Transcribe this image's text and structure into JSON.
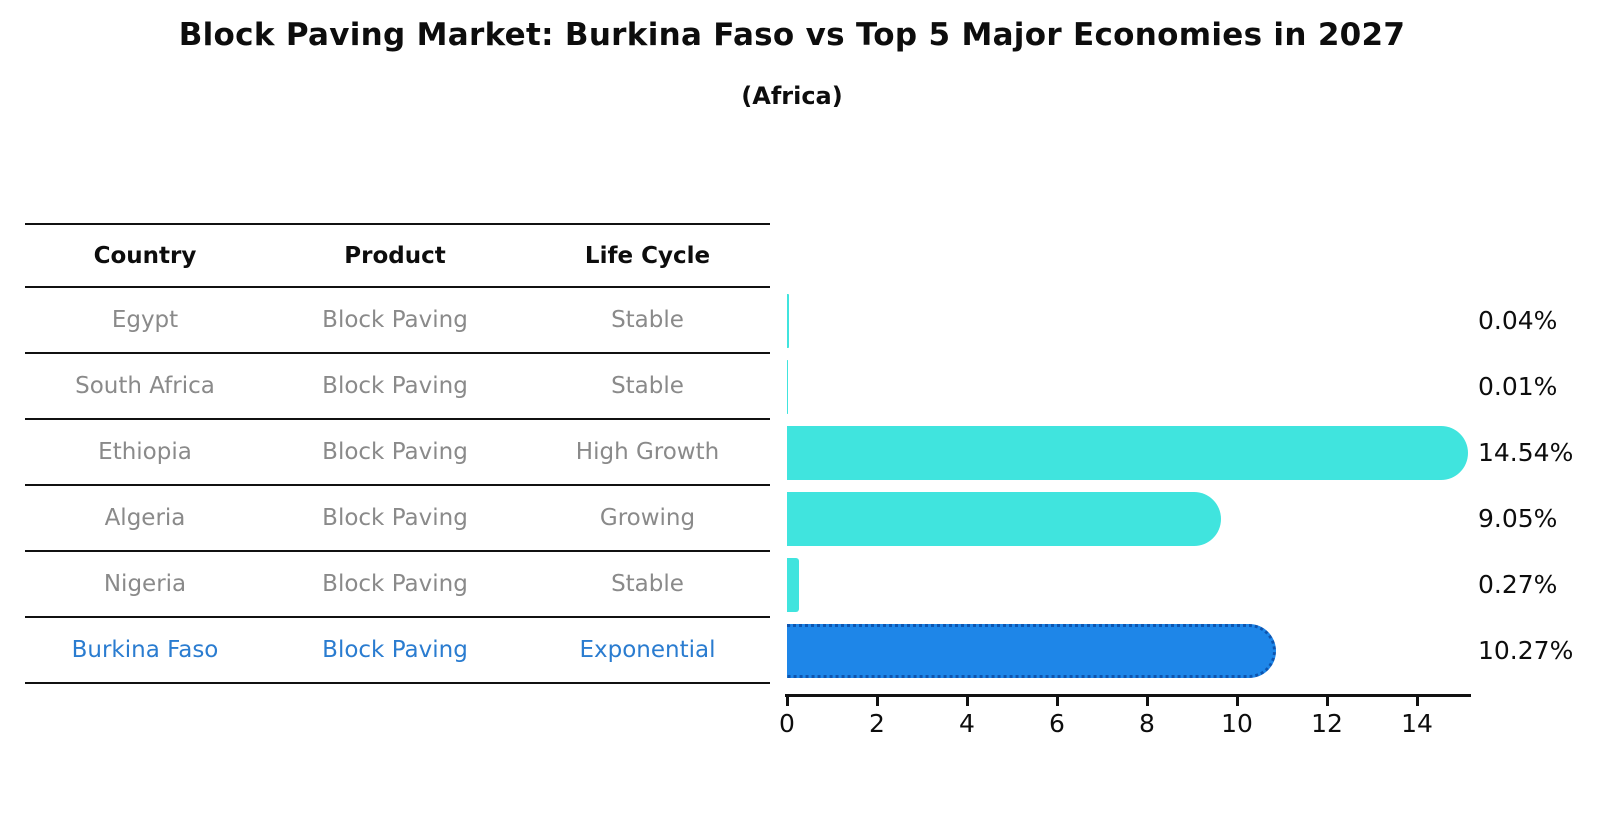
{
  "title": "Block Paving Market: Burkina Faso vs Top 5 Major Economies in 2027",
  "subtitle": "(Africa)",
  "table": {
    "headers": [
      "Country",
      "Product",
      "Life Cycle"
    ],
    "rows": [
      {
        "country": "Egypt",
        "product": "Block Paving",
        "life_cycle": "Stable",
        "highlight": false
      },
      {
        "country": "South Africa",
        "product": "Block Paving",
        "life_cycle": "Stable",
        "highlight": false
      },
      {
        "country": "Ethiopia",
        "product": "Block Paving",
        "life_cycle": "High Growth",
        "highlight": false
      },
      {
        "country": "Algeria",
        "product": "Block Paving",
        "life_cycle": "Growing",
        "highlight": false
      },
      {
        "country": "Nigeria",
        "product": "Block Paving",
        "life_cycle": "Stable",
        "highlight": false
      },
      {
        "country": "Burkina Faso",
        "product": "Block Paving",
        "life_cycle": "Exponential",
        "highlight": true
      }
    ]
  },
  "chart_data": {
    "type": "bar",
    "orientation": "horizontal",
    "title": "Block Paving Market: Burkina Faso vs Top 5 Major Economies in 2027 (Africa)",
    "categories": [
      "Egypt",
      "South Africa",
      "Ethiopia",
      "Algeria",
      "Nigeria",
      "Burkina Faso"
    ],
    "values": [
      0.04,
      0.01,
      14.54,
      9.05,
      0.27,
      10.27
    ],
    "value_labels": [
      "0.04%",
      "0.01%",
      "14.54%",
      "9.05%",
      "0.27%",
      "10.27%"
    ],
    "xlabel": "",
    "ylabel": "",
    "xlim": [
      0,
      15.2
    ],
    "xticks": [
      0,
      2,
      4,
      6,
      8,
      10,
      12,
      14
    ],
    "grid": false,
    "legend": "none",
    "highlight_index": 5
  },
  "colors": {
    "bar": "#40E4DE",
    "highlight_bar": "#1E86E8",
    "highlight_edge": "#0d55b0",
    "highlight_text": "#2a7cd0",
    "body_text": "#8a8a8a",
    "axis": "#111111"
  }
}
